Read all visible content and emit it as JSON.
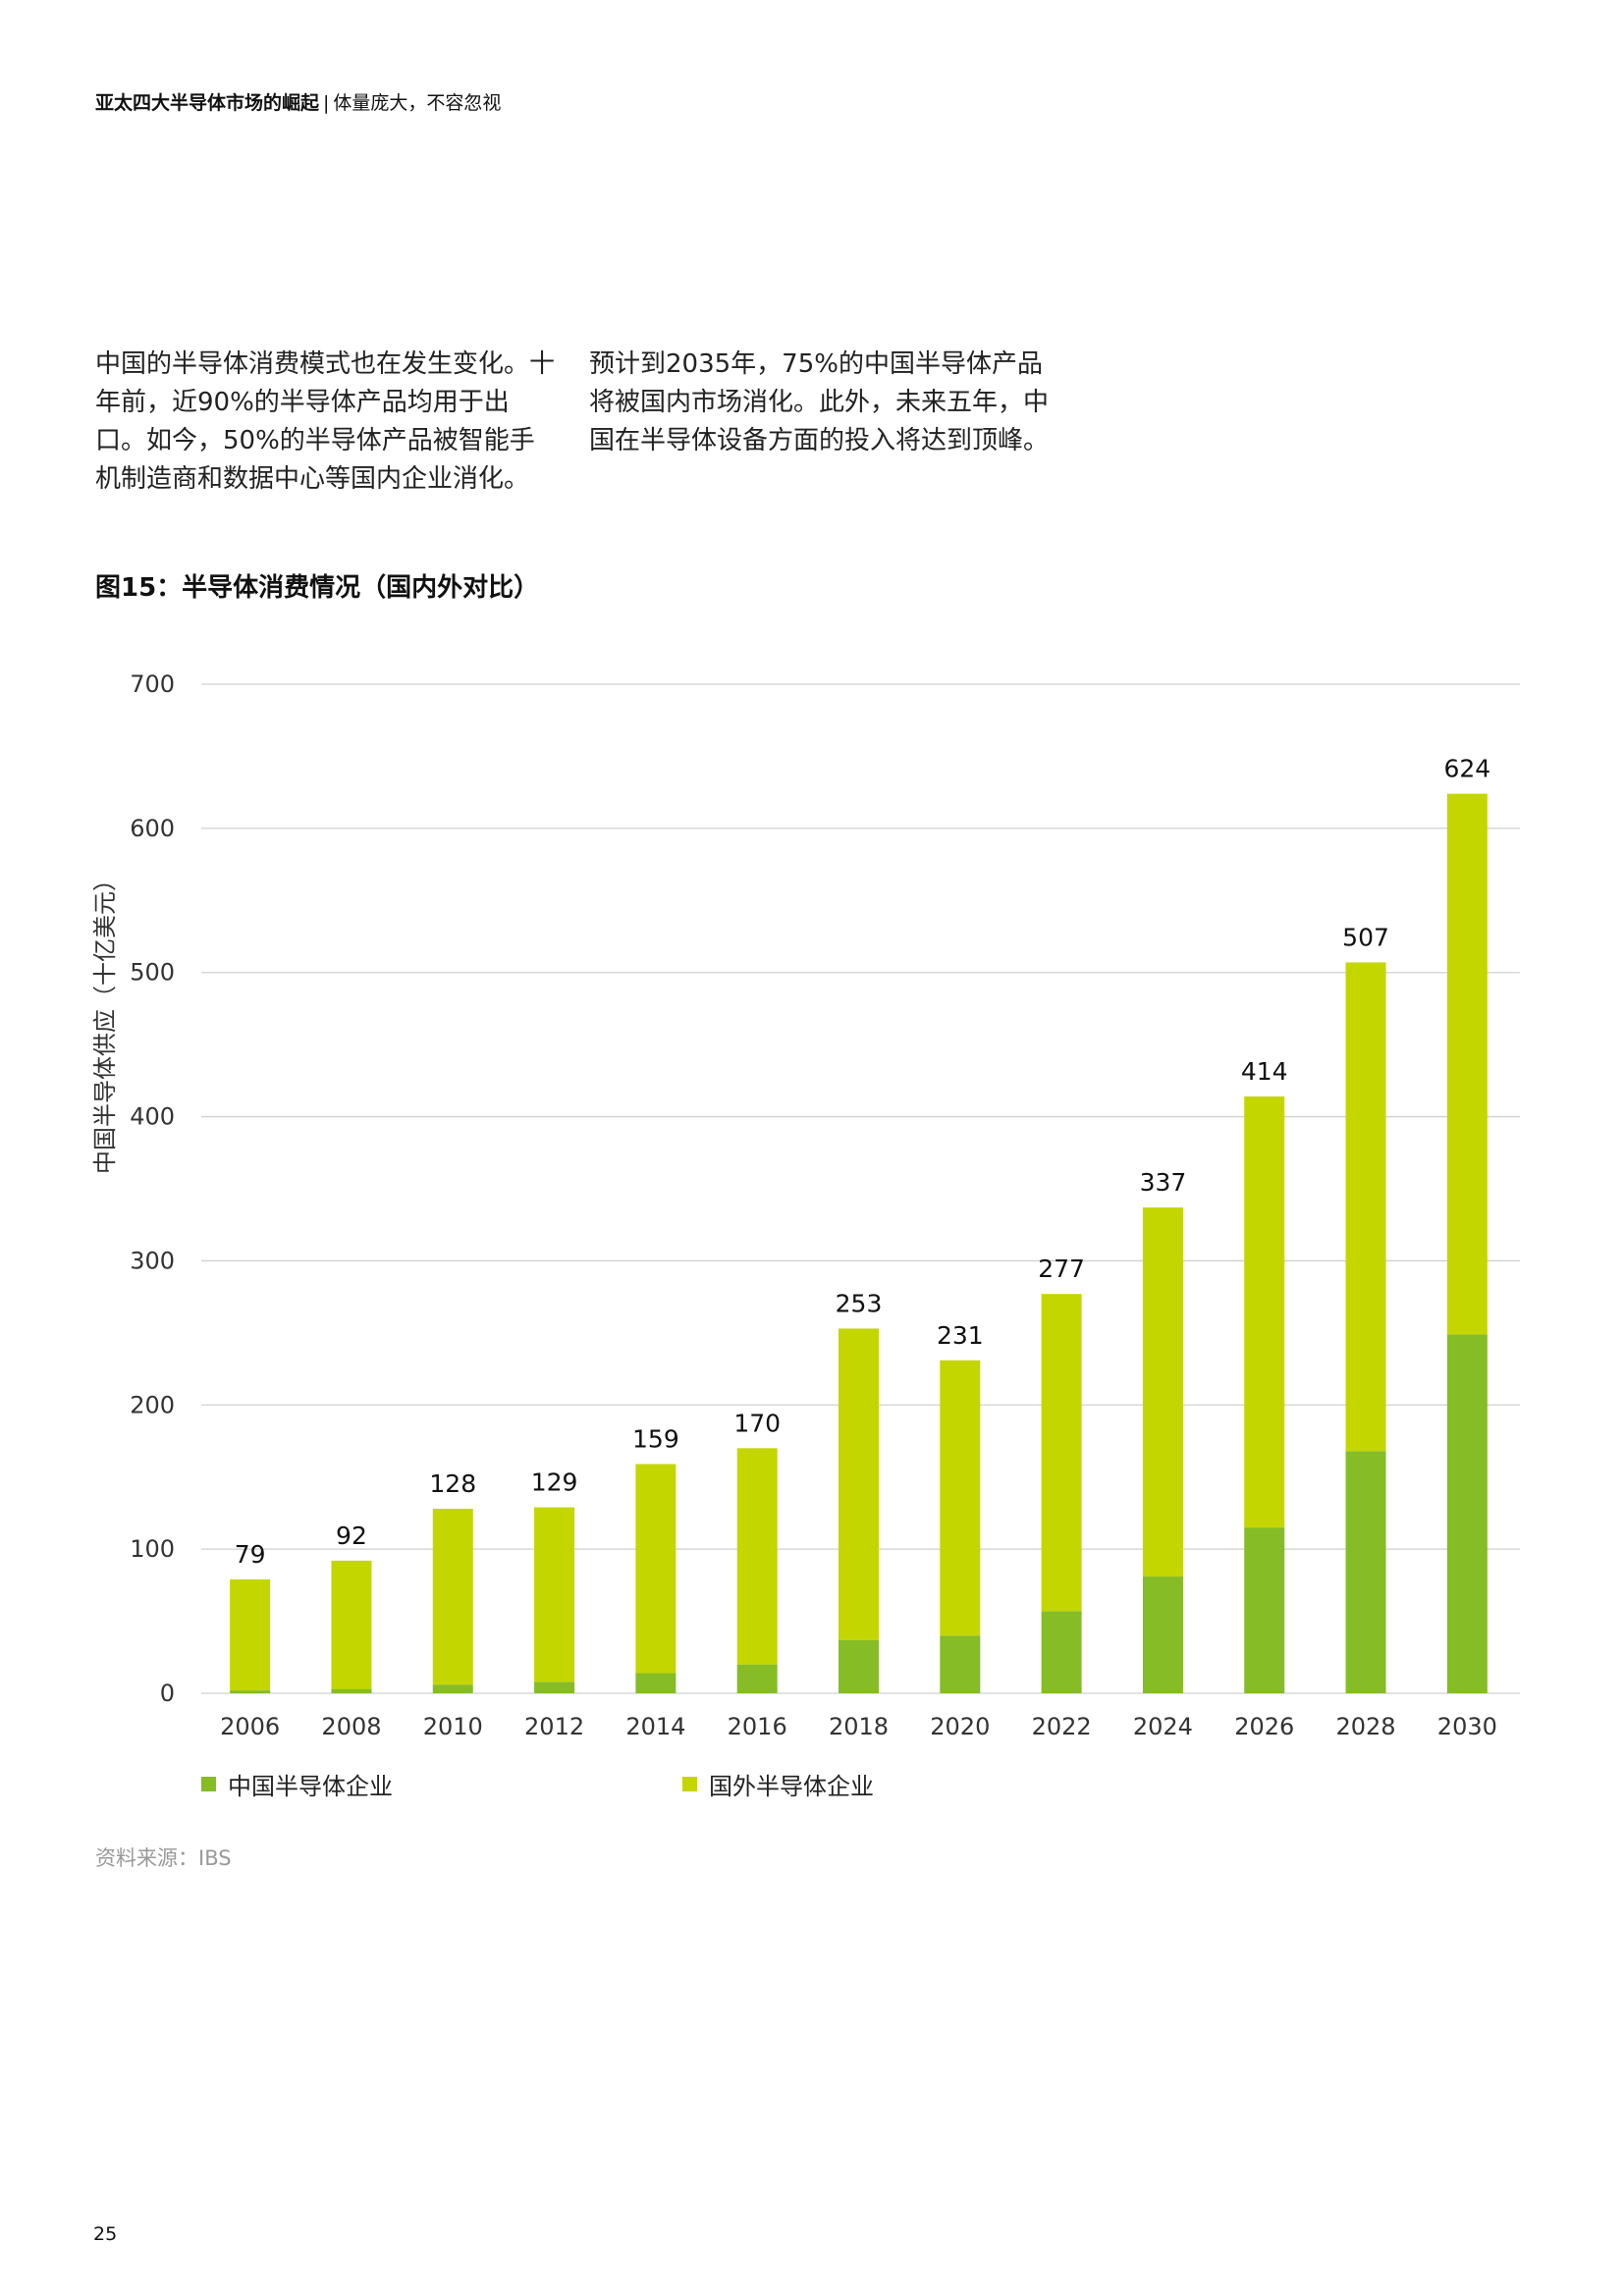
{
  "header": {
    "title_bold": "亚太四大半导体市场的崛起",
    "separator": "|",
    "title_rest": "体量庞大，不容忽视"
  },
  "body": {
    "col1": "中国的半导体消费模式也在发生变化。十年前，近90%的半导体产品均用于出口。如今，50%的半导体产品被智能手机制造商和数据中心等国内企业消化。",
    "col2": "预计到2035年，75%的中国半导体产品将被国内市场消化。此外，未来五年，中国在半导体设备方面的投入将达到顶峰。"
  },
  "figure": {
    "title": "图15：半导体消费情况（国内外对比）",
    "source": "资料来源：IBS"
  },
  "page_number": "25",
  "colors": {
    "domestic": "#86bc25",
    "foreign": "#c4d600",
    "grid": "#d0d0d0"
  },
  "chart_data": {
    "type": "bar",
    "stacked": true,
    "ylabel": "中国半导体供应（十亿美元）",
    "xlabel": "",
    "ylim": [
      0,
      700
    ],
    "yticks": [
      0,
      100,
      200,
      300,
      400,
      500,
      600,
      700
    ],
    "grid": true,
    "legend_position": "bottom",
    "categories": [
      "2006",
      "2008",
      "2010",
      "2012",
      "2014",
      "2016",
      "2018",
      "2020",
      "2022",
      "2024",
      "2026",
      "2028",
      "2030"
    ],
    "series": [
      {
        "name": "中国半导体企业",
        "values": [
          2,
          3,
          6,
          8,
          14,
          20,
          37,
          40,
          57,
          81,
          115,
          168,
          249
        ]
      },
      {
        "name": "国外半导体企业",
        "values": [
          77,
          89,
          122,
          121,
          145,
          150,
          216,
          191,
          220,
          256,
          299,
          339,
          375
        ]
      }
    ],
    "totals": [
      79,
      92,
      128,
      129,
      159,
      170,
      253,
      231,
      277,
      337,
      414,
      507,
      624
    ]
  }
}
